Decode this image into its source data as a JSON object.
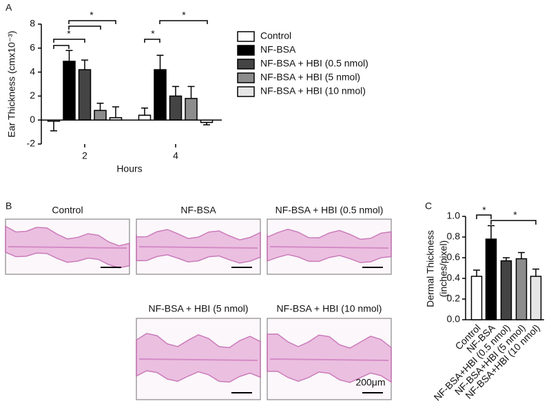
{
  "panels": [
    "A",
    "B",
    "C"
  ],
  "chart_data": [
    {
      "type": "bar",
      "y_label": "Ear Thickness (cmx10⁻³)",
      "x_label": "Hours",
      "categories": [
        "2",
        "4"
      ],
      "series": [
        {
          "name": "Control",
          "color": "#ffffff",
          "values": [
            -0.1,
            0.4
          ],
          "errors": [
            0.8,
            0.6
          ]
        },
        {
          "name": "NF-BSA",
          "color": "#000000",
          "values": [
            4.9,
            4.2
          ],
          "errors": [
            0.9,
            1.2
          ]
        },
        {
          "name": "NF-BSA + HBI (0.5 nmol)",
          "color": "#444444",
          "values": [
            4.2,
            2.0
          ],
          "errors": [
            0.8,
            0.8
          ]
        },
        {
          "name": "NF-BSA + HBI (5 nmol)",
          "color": "#8c8c8c",
          "values": [
            0.8,
            1.8
          ],
          "errors": [
            0.6,
            1.0
          ]
        },
        {
          "name": "NF-BSA + HBI (10 nmol)",
          "color": "#e6e6e6",
          "values": [
            0.2,
            -0.2
          ],
          "errors": [
            0.9,
            0.2
          ]
        }
      ],
      "ylim": [
        -2,
        8
      ],
      "yticks": [
        -2,
        0,
        2,
        4,
        6,
        8
      ],
      "significance": [
        "*",
        "*",
        "*",
        "*"
      ],
      "legend": "right"
    },
    {
      "type": "bar",
      "y_label": [
        "Dermal Thickness",
        "(inches/pixel)"
      ],
      "categories": [
        "Control",
        "NF-BSA",
        "NF-BSA+HBI (0.5 nmol)",
        "NF-BSA+HBI (5 nmol)",
        "NF-BSA+HBI (10 nmol)"
      ],
      "colors": [
        "#ffffff",
        "#000000",
        "#444444",
        "#8c8c8c",
        "#e6e6e6"
      ],
      "values": [
        0.42,
        0.78,
        0.57,
        0.59,
        0.42
      ],
      "errors": [
        0.06,
        0.13,
        0.03,
        0.06,
        0.07
      ],
      "ylim": [
        0,
        1.0
      ],
      "yticks": [
        {
          "value": 0,
          "label": "0.0"
        },
        {
          "value": 0.2,
          "label": "0.2"
        },
        {
          "value": 0.4,
          "label": "0.4"
        },
        {
          "value": 0.6,
          "label": "0.6"
        },
        {
          "value": 0.8,
          "label": "0.8"
        },
        {
          "value": 1.0,
          "label": "1.0"
        }
      ],
      "significance": [
        "*",
        "*"
      ]
    }
  ],
  "images": {
    "labels": [
      "Control",
      "NF-BSA",
      "NF-BSA + HBI (0.5 nmol)",
      "NF-BSA + HBI (5 nmol)",
      "NF-BSA + HBI (10 nmol)"
    ],
    "scale_bar": "200μm"
  }
}
